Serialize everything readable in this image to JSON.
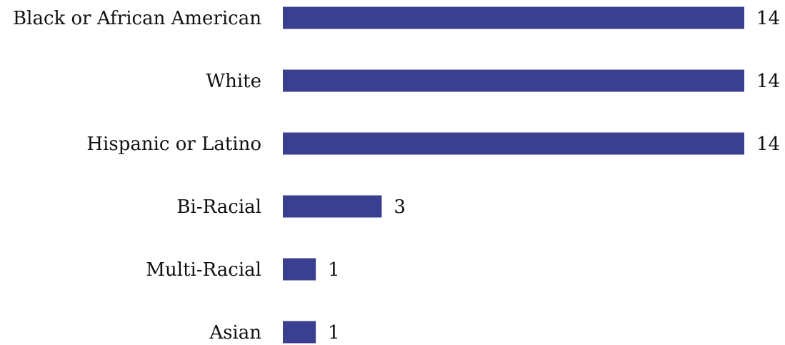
{
  "chart_data": {
    "type": "bar",
    "orientation": "horizontal",
    "categories": [
      "Black or African American",
      "White",
      "Hispanic or Latino",
      "Bi-Racial",
      "Multi-Racial",
      "Asian"
    ],
    "values": [
      14,
      14,
      14,
      3,
      1,
      1
    ],
    "data_labels": [
      "14",
      "14",
      "14",
      "3",
      "1",
      "1"
    ],
    "title": "",
    "xlabel": "",
    "ylabel": "",
    "xlim": [
      0,
      14
    ],
    "grid": false,
    "legend": "none",
    "bar_color": "#3b3f8f"
  }
}
